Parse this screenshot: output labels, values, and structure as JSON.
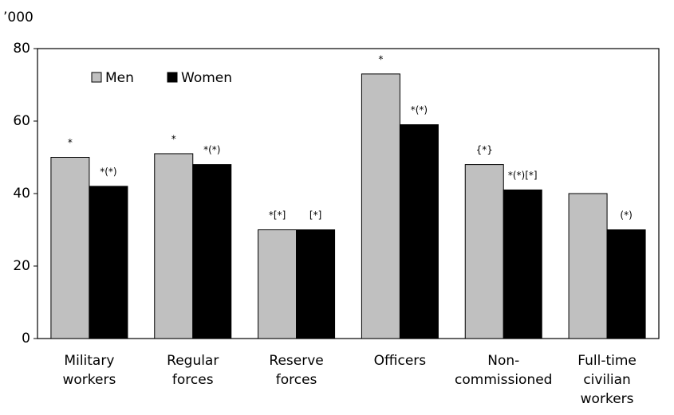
{
  "chart_data": {
    "type": "bar",
    "y_label": "’000",
    "categories": [
      [
        "Military",
        "workers"
      ],
      [
        "Regular",
        "forces"
      ],
      [
        "Reserve",
        "forces"
      ],
      [
        "Officers"
      ],
      [
        "Non-",
        "commissioned"
      ],
      [
        "Full-time",
        "civilian",
        "workers"
      ]
    ],
    "series": [
      {
        "name": "Men",
        "color": "#c0c0c0",
        "values": [
          50,
          51,
          30,
          73,
          48,
          40
        ],
        "annotations": [
          "*",
          "*",
          "*[*]",
          "*",
          "{*}",
          null
        ]
      },
      {
        "name": "Women",
        "color": "#000000",
        "values": [
          42,
          48,
          30,
          59,
          41,
          30
        ],
        "annotations": [
          "*(*)",
          "*(*)",
          "[*]",
          "*(*)",
          "*(*)[*]",
          "(*)"
        ]
      }
    ],
    "ylim": [
      0,
      80
    ],
    "yticks": [
      0,
      20,
      40,
      60,
      80
    ],
    "grid": false,
    "legend": "upper left"
  }
}
